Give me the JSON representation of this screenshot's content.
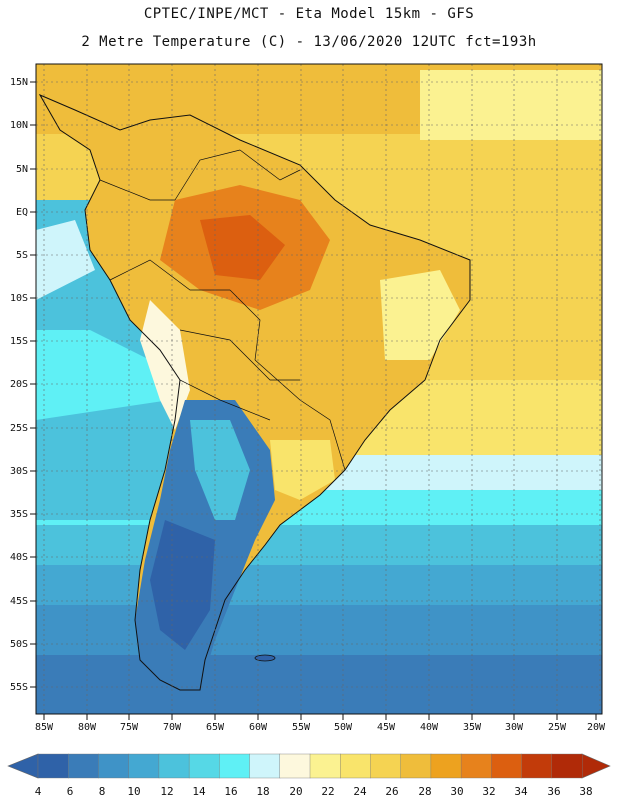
{
  "header": {
    "title_line1": "CPTEC/INPE/MCT -  Eta Model 15km - GFS",
    "title_line2": "2 Metre Temperature (C) - 13/06/2020 12UTC fct=193h"
  },
  "axes": {
    "lat_labels": [
      "15N",
      "10N",
      "5N",
      "EQ",
      "5S",
      "10S",
      "15S",
      "20S",
      "25S",
      "30S",
      "35S",
      "40S",
      "45S",
      "50S",
      "55S"
    ],
    "lon_labels": [
      "85W",
      "80W",
      "75W",
      "70W",
      "65W",
      "60W",
      "55W",
      "50W",
      "45W",
      "40W",
      "35W",
      "30W",
      "25W",
      "20W"
    ]
  },
  "colorbar": {
    "labels": [
      "4",
      "6",
      "8",
      "10",
      "12",
      "14",
      "16",
      "18",
      "20",
      "22",
      "24",
      "26",
      "28",
      "30",
      "32",
      "34",
      "36",
      "38"
    ],
    "colors": [
      "#2f62a8",
      "#3a7cb8",
      "#3f93c7",
      "#44a8d2",
      "#4cc2dc",
      "#56d8e6",
      "#5ff0f5",
      "#cff5fb",
      "#fdf8dd",
      "#fbf291",
      "#f9e46b",
      "#f5d352",
      "#efbd3b",
      "#eda21f",
      "#e7821c",
      "#dc5f10",
      "#c23b0a",
      "#b02a08"
    ]
  },
  "palette": {
    "ocean_cold": "#2f62a8",
    "ocean_mid": "#4cc2dc",
    "ocean_warm": "#f5d352",
    "land_hot": "#e7821c",
    "land_warm": "#efbd3b"
  }
}
